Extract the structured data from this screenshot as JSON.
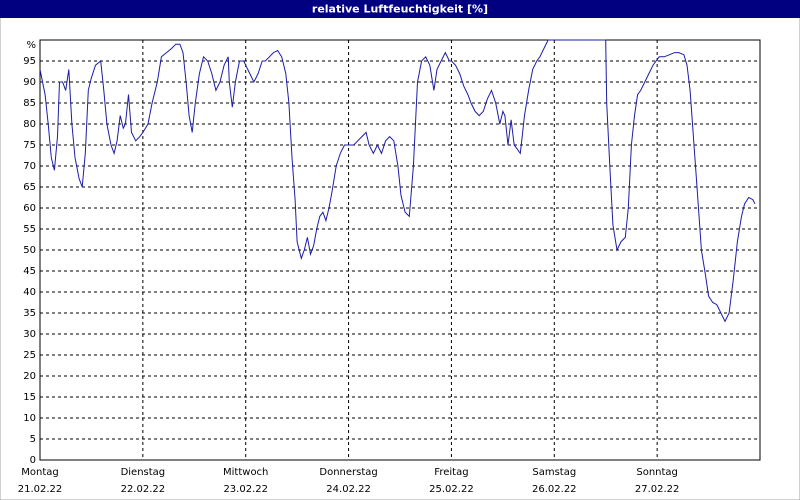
{
  "chart_data": {
    "type": "line",
    "title": "relative Luftfeuchtigkeit [%]",
    "xlim": [
      0,
      7
    ],
    "xticks": [
      {
        "value": 0,
        "label": "Montag"
      },
      {
        "value": 1,
        "label": "Dienstag"
      },
      {
        "value": 2,
        "label": "Mittwoch"
      },
      {
        "value": 3,
        "label": "Donnerstag"
      },
      {
        "value": 4,
        "label": "Freitag"
      },
      {
        "value": 5,
        "label": "Samstag"
      },
      {
        "value": 6,
        "label": "Sonntag"
      }
    ],
    "xtick_dates": [
      "21.02.22",
      "22.02.22",
      "23.02.22",
      "24.02.22",
      "25.02.22",
      "26.02.22",
      "27.02.22"
    ],
    "ylim": [
      0,
      100
    ],
    "yticks": [
      0,
      5,
      10,
      15,
      20,
      25,
      30,
      35,
      40,
      45,
      50,
      55,
      60,
      65,
      70,
      75,
      80,
      85,
      90,
      95,
      {
        "value": 100,
        "label": "%"
      }
    ],
    "grid": true,
    "series": [
      {
        "name": "relative Luftfeuchtigkeit",
        "color": "#1c1ca8",
        "x": [
          0,
          0.05,
          0.08,
          0.11,
          0.14,
          0.17,
          0.19,
          0.22,
          0.25,
          0.28,
          0.31,
          0.34,
          0.38,
          0.41,
          0.44,
          0.47,
          0.5,
          0.54,
          0.59,
          0.62,
          0.65,
          0.69,
          0.72,
          0.75,
          0.78,
          0.81,
          0.83,
          0.86,
          0.89,
          0.93,
          0.97,
          1.0,
          1.05,
          1.09,
          1.14,
          1.18,
          1.23,
          1.28,
          1.32,
          1.36,
          1.39,
          1.42,
          1.45,
          1.48,
          1.51,
          1.55,
          1.59,
          1.63,
          1.67,
          1.71,
          1.75,
          1.79,
          1.83,
          1.84,
          1.87,
          1.9,
          1.94,
          1.98,
          2.0,
          2.04,
          2.08,
          2.12,
          2.16,
          2.19,
          2.23,
          2.27,
          2.31,
          2.35,
          2.39,
          2.42,
          2.45,
          2.48,
          2.5,
          2.54,
          2.57,
          2.6,
          2.63,
          2.66,
          2.69,
          2.72,
          2.75,
          2.78,
          2.81,
          2.84,
          2.88,
          2.92,
          2.96,
          3.0,
          3.05,
          3.09,
          3.13,
          3.17,
          3.2,
          3.24,
          3.28,
          3.32,
          3.36,
          3.4,
          3.44,
          3.48,
          3.51,
          3.55,
          3.59,
          3.63,
          3.67,
          3.71,
          3.75,
          3.79,
          3.83,
          3.86,
          3.9,
          3.94,
          3.98,
          4.0,
          4.04,
          4.08,
          4.12,
          4.16,
          4.19,
          4.23,
          4.27,
          4.31,
          4.35,
          4.39,
          4.43,
          4.47,
          4.5,
          4.52,
          4.55,
          4.58,
          4.61,
          4.64,
          4.67,
          4.71,
          4.75,
          4.79,
          4.83,
          4.86,
          4.9,
          4.94,
          4.98,
          5.5,
          5.51,
          5.54,
          5.57,
          5.61,
          5.65,
          5.69,
          5.72,
          5.75,
          5.78,
          5.81,
          5.84,
          5.88,
          5.92,
          5.96,
          5.99,
          6.02,
          6.07,
          6.12,
          6.17,
          6.21,
          6.26,
          6.29,
          6.32,
          6.35,
          6.39,
          6.43,
          6.47,
          6.5,
          6.54,
          6.58,
          6.62,
          6.66,
          6.7,
          6.74,
          6.78,
          6.82,
          6.85,
          6.89,
          6.93,
          6.95
        ],
        "values": [
          93,
          87,
          80,
          72,
          69,
          77,
          90,
          90,
          88,
          93,
          80,
          72,
          67,
          65,
          73,
          88,
          91,
          94,
          95,
          88,
          80,
          75,
          73,
          76,
          82,
          79,
          80,
          87,
          78,
          76,
          77,
          78,
          80,
          85,
          90,
          96,
          97,
          98,
          99,
          99,
          97,
          90,
          82,
          78,
          85,
          92,
          96,
          95,
          92,
          88,
          90,
          94,
          96,
          90,
          84,
          90,
          95,
          95,
          94,
          92,
          90,
          92,
          95,
          95,
          96,
          97,
          97.5,
          96,
          92,
          85,
          72,
          62,
          52,
          48,
          50,
          53,
          49,
          51,
          55,
          58,
          59,
          57,
          60,
          64,
          70,
          73,
          75,
          75,
          75,
          76,
          77,
          78,
          75,
          73,
          75,
          73,
          76,
          77,
          76,
          70,
          63,
          59,
          58,
          70,
          90,
          95,
          96,
          94,
          88,
          93,
          95,
          97,
          95,
          95,
          94,
          92,
          89,
          87,
          85,
          83,
          82,
          83,
          86,
          88,
          85,
          80,
          83,
          82,
          75,
          81,
          75,
          74,
          73,
          82,
          88,
          93,
          95,
          96,
          98,
          100,
          100,
          100,
          85,
          70,
          56,
          50,
          52,
          53,
          60,
          75,
          82,
          87,
          88,
          90,
          92,
          94,
          95,
          96,
          96,
          96.5,
          97,
          97,
          96.5,
          94,
          88,
          78,
          64,
          50,
          44,
          39,
          37.5,
          37,
          35,
          33,
          35,
          43,
          52,
          58,
          61,
          62.5,
          62,
          61
        ]
      }
    ]
  }
}
